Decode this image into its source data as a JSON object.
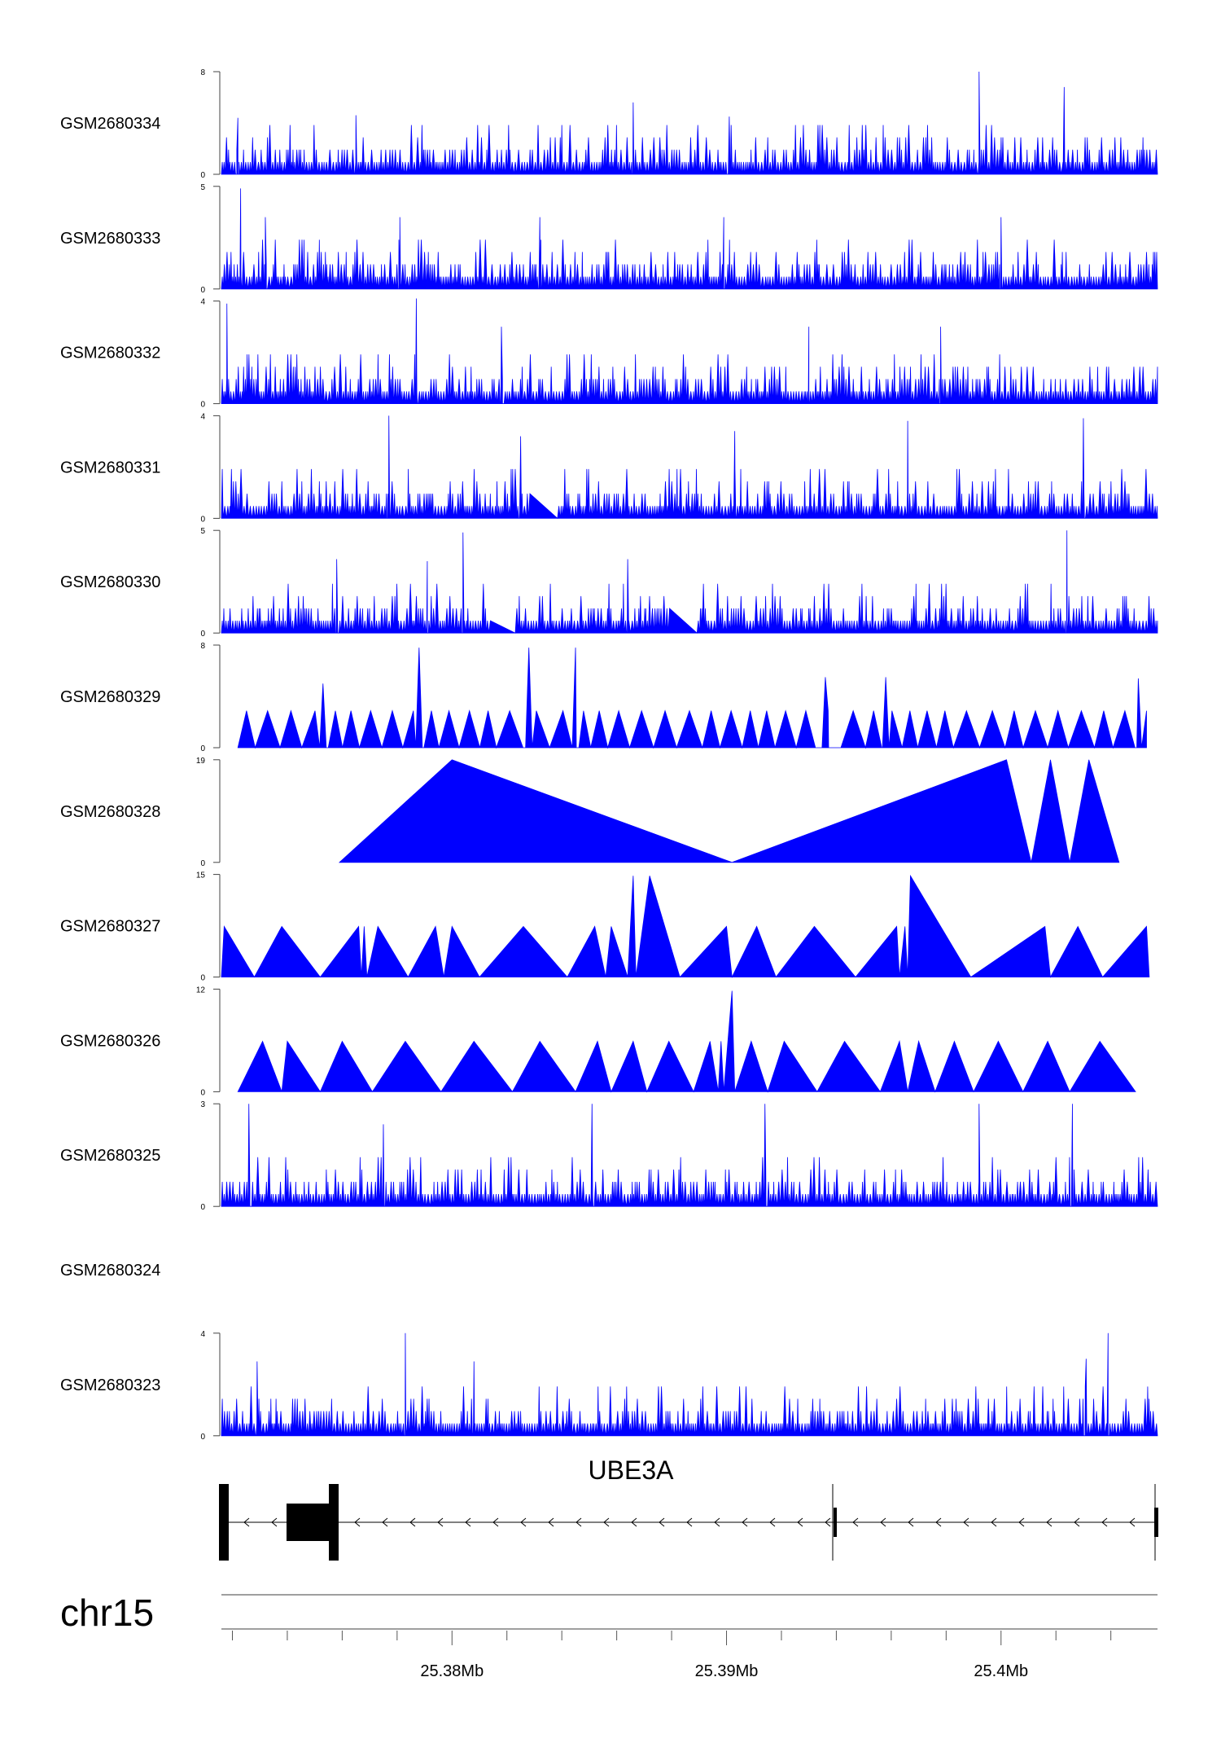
{
  "chart_data": {
    "type": "area",
    "chromosome": "chr15",
    "gene": "UBE3A",
    "fill_color": "#0000ff",
    "line_color": "#0000ff",
    "x_range": [
      25.3716,
      25.4057
    ],
    "x_ticks": [
      25.38,
      25.39,
      25.4
    ],
    "x_tick_labels": [
      "25.38Mb",
      "25.39Mb",
      "25.4Mb"
    ],
    "tracks": [
      {
        "label": "GSM2680334",
        "ymax_label": "8",
        "ymin_label": "0",
        "ymax": 8,
        "kind": "dense",
        "seed": 11,
        "peaks": [
          [
            25.3992,
            8
          ],
          [
            25.3901,
            4.5
          ],
          [
            25.3866,
            5.6
          ],
          [
            25.4023,
            6.8
          ],
          [
            25.3765,
            4.6
          ],
          [
            25.3722,
            4.4
          ]
        ]
      },
      {
        "label": "GSM2680333",
        "ymax_label": "5",
        "ymin_label": "0",
        "ymax": 5,
        "kind": "dense",
        "seed": 23,
        "peaks": [
          [
            25.3723,
            4.9
          ],
          [
            25.3732,
            3.5
          ],
          [
            25.3781,
            3.5
          ],
          [
            25.3899,
            3.5
          ],
          [
            25.4,
            3.5
          ],
          [
            25.3832,
            3.5
          ]
        ]
      },
      {
        "label": "GSM2680332",
        "ymax_label": "4",
        "ymin_label": "0",
        "ymax": 4,
        "kind": "dense",
        "seed": 37,
        "peaks": [
          [
            25.3718,
            3.9
          ],
          [
            25.3787,
            4.1
          ],
          [
            25.3818,
            3.0
          ],
          [
            25.393,
            3.0
          ],
          [
            25.3978,
            3.0
          ]
        ]
      },
      {
        "label": "GSM2680331",
        "ymax_label": "4",
        "ymin_label": "0",
        "ymax": 4,
        "kind": "dense",
        "seed": 41,
        "peaks": [
          [
            25.3777,
            4.0
          ],
          [
            25.3825,
            3.2
          ],
          [
            25.3966,
            3.8
          ],
          [
            25.403,
            3.9
          ],
          [
            25.3903,
            3.4
          ]
        ],
        "gaps": [
          [
            25.3828,
            25.3838
          ]
        ]
      },
      {
        "label": "GSM2680330",
        "ymax_label": "5",
        "ymin_label": "0",
        "ymax": 5,
        "kind": "dense",
        "seed": 53,
        "peaks": [
          [
            25.3804,
            4.9
          ],
          [
            25.3864,
            3.6
          ],
          [
            25.4024,
            5.0
          ],
          [
            25.3791,
            3.5
          ],
          [
            25.3758,
            3.6
          ]
        ],
        "gaps": [
          [
            25.3814,
            25.3823
          ],
          [
            25.3879,
            25.3889
          ]
        ]
      },
      {
        "label": "GSM2680329",
        "ymax_label": "8",
        "ymin_label": "0",
        "ymax": 8,
        "kind": "sparse",
        "seed": 61,
        "start": 25.3722,
        "end": 25.4053,
        "peaks": [
          [
            25.3788,
            7.8
          ],
          [
            25.3828,
            7.8
          ],
          [
            25.3845,
            7.8
          ],
          [
            25.3936,
            5.5
          ],
          [
            25.3958,
            5.5
          ],
          [
            25.405,
            5.4
          ],
          [
            25.3753,
            5.0
          ]
        ]
      },
      {
        "label": "GSM2680328",
        "ymax_label": "19",
        "ymin_label": "0",
        "ymax": 19,
        "kind": "explicit",
        "points": [
          [
            25.3759,
            0
          ],
          [
            25.38,
            19
          ],
          [
            25.3902,
            0
          ],
          [
            25.4002,
            19
          ],
          [
            25.4011,
            0
          ],
          [
            25.4018,
            19
          ],
          [
            25.4025,
            0
          ],
          [
            25.4032,
            19
          ],
          [
            25.4043,
            0
          ]
        ]
      },
      {
        "label": "GSM2680327",
        "ymax_label": "15",
        "ymin_label": "0",
        "ymax": 15,
        "kind": "explicit",
        "points": [
          [
            25.3716,
            0
          ],
          [
            25.3717,
            7.4
          ],
          [
            25.3728,
            0
          ],
          [
            25.3738,
            7.4
          ],
          [
            25.3752,
            0
          ],
          [
            25.3766,
            7.4
          ],
          [
            25.3767,
            0
          ],
          [
            25.3768,
            7.4
          ],
          [
            25.3769,
            0
          ],
          [
            25.3773,
            7.4
          ],
          [
            25.3784,
            0
          ],
          [
            25.3794,
            7.4
          ],
          [
            25.3797,
            0
          ],
          [
            25.38,
            7.4
          ],
          [
            25.381,
            0
          ],
          [
            25.3826,
            7.4
          ],
          [
            25.3842,
            0
          ],
          [
            25.3852,
            7.4
          ],
          [
            25.3856,
            0
          ],
          [
            25.3858,
            7.4
          ],
          [
            25.3864,
            0
          ],
          [
            25.3866,
            14.8
          ],
          [
            25.3867,
            0
          ],
          [
            25.3872,
            14.8
          ],
          [
            25.3883,
            0
          ],
          [
            25.39,
            7.4
          ],
          [
            25.3902,
            0
          ],
          [
            25.3911,
            7.4
          ],
          [
            25.3918,
            0
          ],
          [
            25.3932,
            7.4
          ],
          [
            25.3947,
            0
          ],
          [
            25.3962,
            7.4
          ],
          [
            25.3963,
            0
          ],
          [
            25.3965,
            7.4
          ],
          [
            25.3966,
            0
          ],
          [
            25.3967,
            14.8
          ],
          [
            25.3989,
            0
          ],
          [
            25.4016,
            7.4
          ],
          [
            25.4018,
            0
          ],
          [
            25.4028,
            7.4
          ],
          [
            25.4037,
            0
          ],
          [
            25.4053,
            7.4
          ],
          [
            25.4054,
            0
          ]
        ]
      },
      {
        "label": "GSM2680326",
        "ymax_label": "12",
        "ymin_label": "0",
        "ymax": 12,
        "kind": "explicit",
        "points": [
          [
            25.3722,
            0
          ],
          [
            25.3731,
            5.9
          ],
          [
            25.3738,
            0
          ],
          [
            25.374,
            5.9
          ],
          [
            25.3752,
            0
          ],
          [
            25.376,
            5.9
          ],
          [
            25.3771,
            0
          ],
          [
            25.3783,
            5.9
          ],
          [
            25.3796,
            0
          ],
          [
            25.3808,
            5.9
          ],
          [
            25.3822,
            0
          ],
          [
            25.3832,
            5.9
          ],
          [
            25.3845,
            0
          ],
          [
            25.3853,
            5.9
          ],
          [
            25.3858,
            0
          ],
          [
            25.3866,
            5.9
          ],
          [
            25.3871,
            0
          ],
          [
            25.3879,
            5.9
          ],
          [
            25.3888,
            0
          ],
          [
            25.3894,
            5.9
          ],
          [
            25.3897,
            0
          ],
          [
            25.3898,
            5.9
          ],
          [
            25.3899,
            0
          ],
          [
            25.3902,
            11.8
          ],
          [
            25.3903,
            0
          ],
          [
            25.3909,
            5.9
          ],
          [
            25.3915,
            0
          ],
          [
            25.3921,
            5.9
          ],
          [
            25.3933,
            0
          ],
          [
            25.3943,
            5.9
          ],
          [
            25.3956,
            0
          ],
          [
            25.3963,
            5.9
          ],
          [
            25.3966,
            0
          ],
          [
            25.397,
            5.9
          ],
          [
            25.3976,
            0
          ],
          [
            25.3983,
            5.9
          ],
          [
            25.399,
            0
          ],
          [
            25.3999,
            5.9
          ],
          [
            25.4008,
            0
          ],
          [
            25.4017,
            5.9
          ],
          [
            25.4025,
            0
          ],
          [
            25.4036,
            5.9
          ],
          [
            25.4049,
            0
          ]
        ]
      },
      {
        "label": "GSM2680325",
        "ymax_label": "3",
        "ymin_label": "0",
        "ymax": 3,
        "kind": "dense",
        "seed": 71,
        "peaks": [
          [
            25.3726,
            3.0
          ],
          [
            25.3851,
            3.0
          ],
          [
            25.3914,
            3.0
          ],
          [
            25.3992,
            3.0
          ],
          [
            25.4026,
            3.0
          ],
          [
            25.3775,
            2.4
          ]
        ]
      },
      {
        "label": "GSM2680324",
        "ymax_label": "",
        "ymin_label": "",
        "ymax": 0,
        "kind": "empty"
      },
      {
        "label": "GSM2680323",
        "ymax_label": "4",
        "ymin_label": "0",
        "ymax": 4,
        "kind": "dense",
        "seed": 83,
        "peaks": [
          [
            25.3783,
            4.0
          ],
          [
            25.4039,
            4.0
          ],
          [
            25.4031,
            3.0
          ],
          [
            25.3729,
            2.9
          ],
          [
            25.3808,
            2.9
          ]
        ]
      }
    ],
    "gene_model": {
      "strand": "-",
      "exons": [
        [
          25.3716,
          25.3719,
          "thick"
        ],
        [
          25.374,
          25.3758,
          "thick"
        ],
        [
          25.3938,
          25.3939,
          "thick"
        ],
        [
          25.4055,
          25.4056,
          "thick"
        ]
      ],
      "dividers": [
        25.3758,
        25.3938,
        25.4055
      ]
    }
  }
}
